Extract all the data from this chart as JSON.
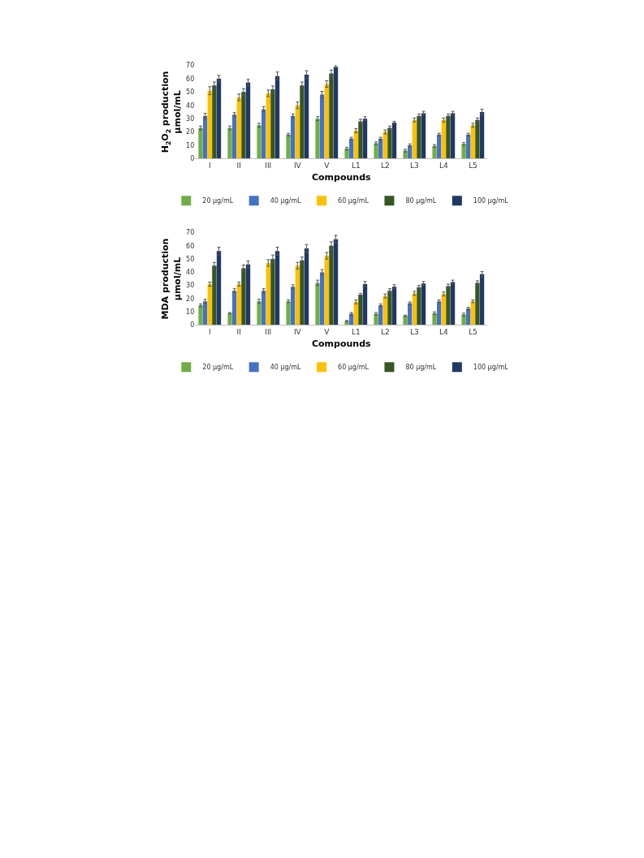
{
  "chart_data": [
    {
      "type": "bar",
      "xlabel": "Compounds",
      "ylabel": "H$_{2}$O$_{2}$ production\nµmol/mL",
      "categories": [
        "I",
        "II",
        "III",
        "IV",
        "V",
        "L1",
        "L2",
        "L3",
        "L4",
        "L5"
      ],
      "ylim": [
        0,
        70
      ],
      "yticks": [
        0,
        10,
        20,
        30,
        40,
        50,
        60,
        70
      ],
      "grid": false,
      "legend": "bottom",
      "series": [
        {
          "name": "20 µg/mL",
          "color": "#70ad47",
          "values": [
            23,
            23,
            25,
            18,
            30,
            7.5,
            11.5,
            6,
            9.5,
            11
          ],
          "errors": [
            1.5,
            1.5,
            1.5,
            1,
            1.5,
            1,
            1,
            1,
            1,
            1
          ]
        },
        {
          "name": "40 µg/mL",
          "color": "#4472c4",
          "values": [
            32,
            33,
            37,
            32,
            48,
            15,
            15,
            10,
            18,
            18
          ],
          "errors": [
            2,
            1.5,
            2,
            1.5,
            2.5,
            1,
            1,
            1,
            1,
            1
          ]
        },
        {
          "name": "60 µg/mL",
          "color": "#ffc000",
          "values": [
            51,
            46,
            49,
            40,
            56,
            21,
            20,
            29,
            29,
            25
          ],
          "errors": [
            3,
            2.5,
            2.5,
            2.5,
            2.5,
            1.5,
            1.5,
            1.5,
            1.5,
            1.5
          ]
        },
        {
          "name": "80 µg/mL",
          "color": "#375623",
          "values": [
            55,
            50,
            52,
            55,
            64,
            28,
            23,
            32,
            32,
            29
          ],
          "errors": [
            2.5,
            2.5,
            2.5,
            2.5,
            2.5,
            1.5,
            1.5,
            1.5,
            1.5,
            1.5
          ]
        },
        {
          "name": "100 µg/mL",
          "color": "#203864",
          "values": [
            60,
            57,
            62,
            63,
            69,
            30,
            27,
            34,
            34,
            35
          ],
          "errors": [
            2.5,
            2.5,
            3,
            3,
            1,
            1.5,
            1,
            1.5,
            1.5,
            2
          ]
        }
      ]
    },
    {
      "type": "bar",
      "xlabel": "Compounds",
      "ylabel": "MDA production\nµmol/mL",
      "categories": [
        "I",
        "II",
        "III",
        "IV",
        "V",
        "L1",
        "L2",
        "L3",
        "L4",
        "L5"
      ],
      "ylim": [
        0,
        70
      ],
      "yticks": [
        0,
        10,
        20,
        30,
        40,
        50,
        60,
        70
      ],
      "grid": false,
      "legend": "bottom",
      "series": [
        {
          "name": "20 µg/mL",
          "color": "#70ad47",
          "values": [
            15,
            9,
            18,
            18,
            32,
            3,
            8.5,
            7,
            9,
            8
          ],
          "errors": [
            1,
            0.5,
            1.5,
            1,
            2,
            0.5,
            1,
            0.5,
            1,
            1
          ]
        },
        {
          "name": "40 µg/mL",
          "color": "#4472c4",
          "values": [
            18,
            26,
            26,
            29,
            40,
            8.5,
            15,
            16.5,
            18,
            12.5
          ],
          "errors": [
            1.5,
            1.5,
            1.5,
            1.5,
            2,
            1,
            1,
            1,
            1,
            1
          ]
        },
        {
          "name": "60 µg/mL",
          "color": "#ffc000",
          "values": [
            31,
            31,
            47,
            45,
            52.5,
            17.5,
            22,
            24,
            23.5,
            18
          ],
          "errors": [
            1.5,
            1.5,
            2.5,
            2.5,
            2.5,
            1.5,
            1.5,
            1.5,
            1.5,
            1
          ]
        },
        {
          "name": "80 µg/mL",
          "color": "#375623",
          "values": [
            45,
            43,
            50,
            49,
            60,
            23,
            26,
            28.5,
            29.5,
            32
          ],
          "errors": [
            2.5,
            2.5,
            3,
            2.5,
            3,
            1,
            1.5,
            1.5,
            1.5,
            1.5
          ]
        },
        {
          "name": "100 µg/mL",
          "color": "#203864",
          "values": [
            56,
            46,
            56,
            58,
            65,
            31,
            29,
            31.5,
            32.5,
            38.5
          ],
          "errors": [
            3,
            2.5,
            3,
            3,
            3,
            2,
            1.5,
            1.5,
            1.5,
            2
          ]
        }
      ]
    }
  ]
}
